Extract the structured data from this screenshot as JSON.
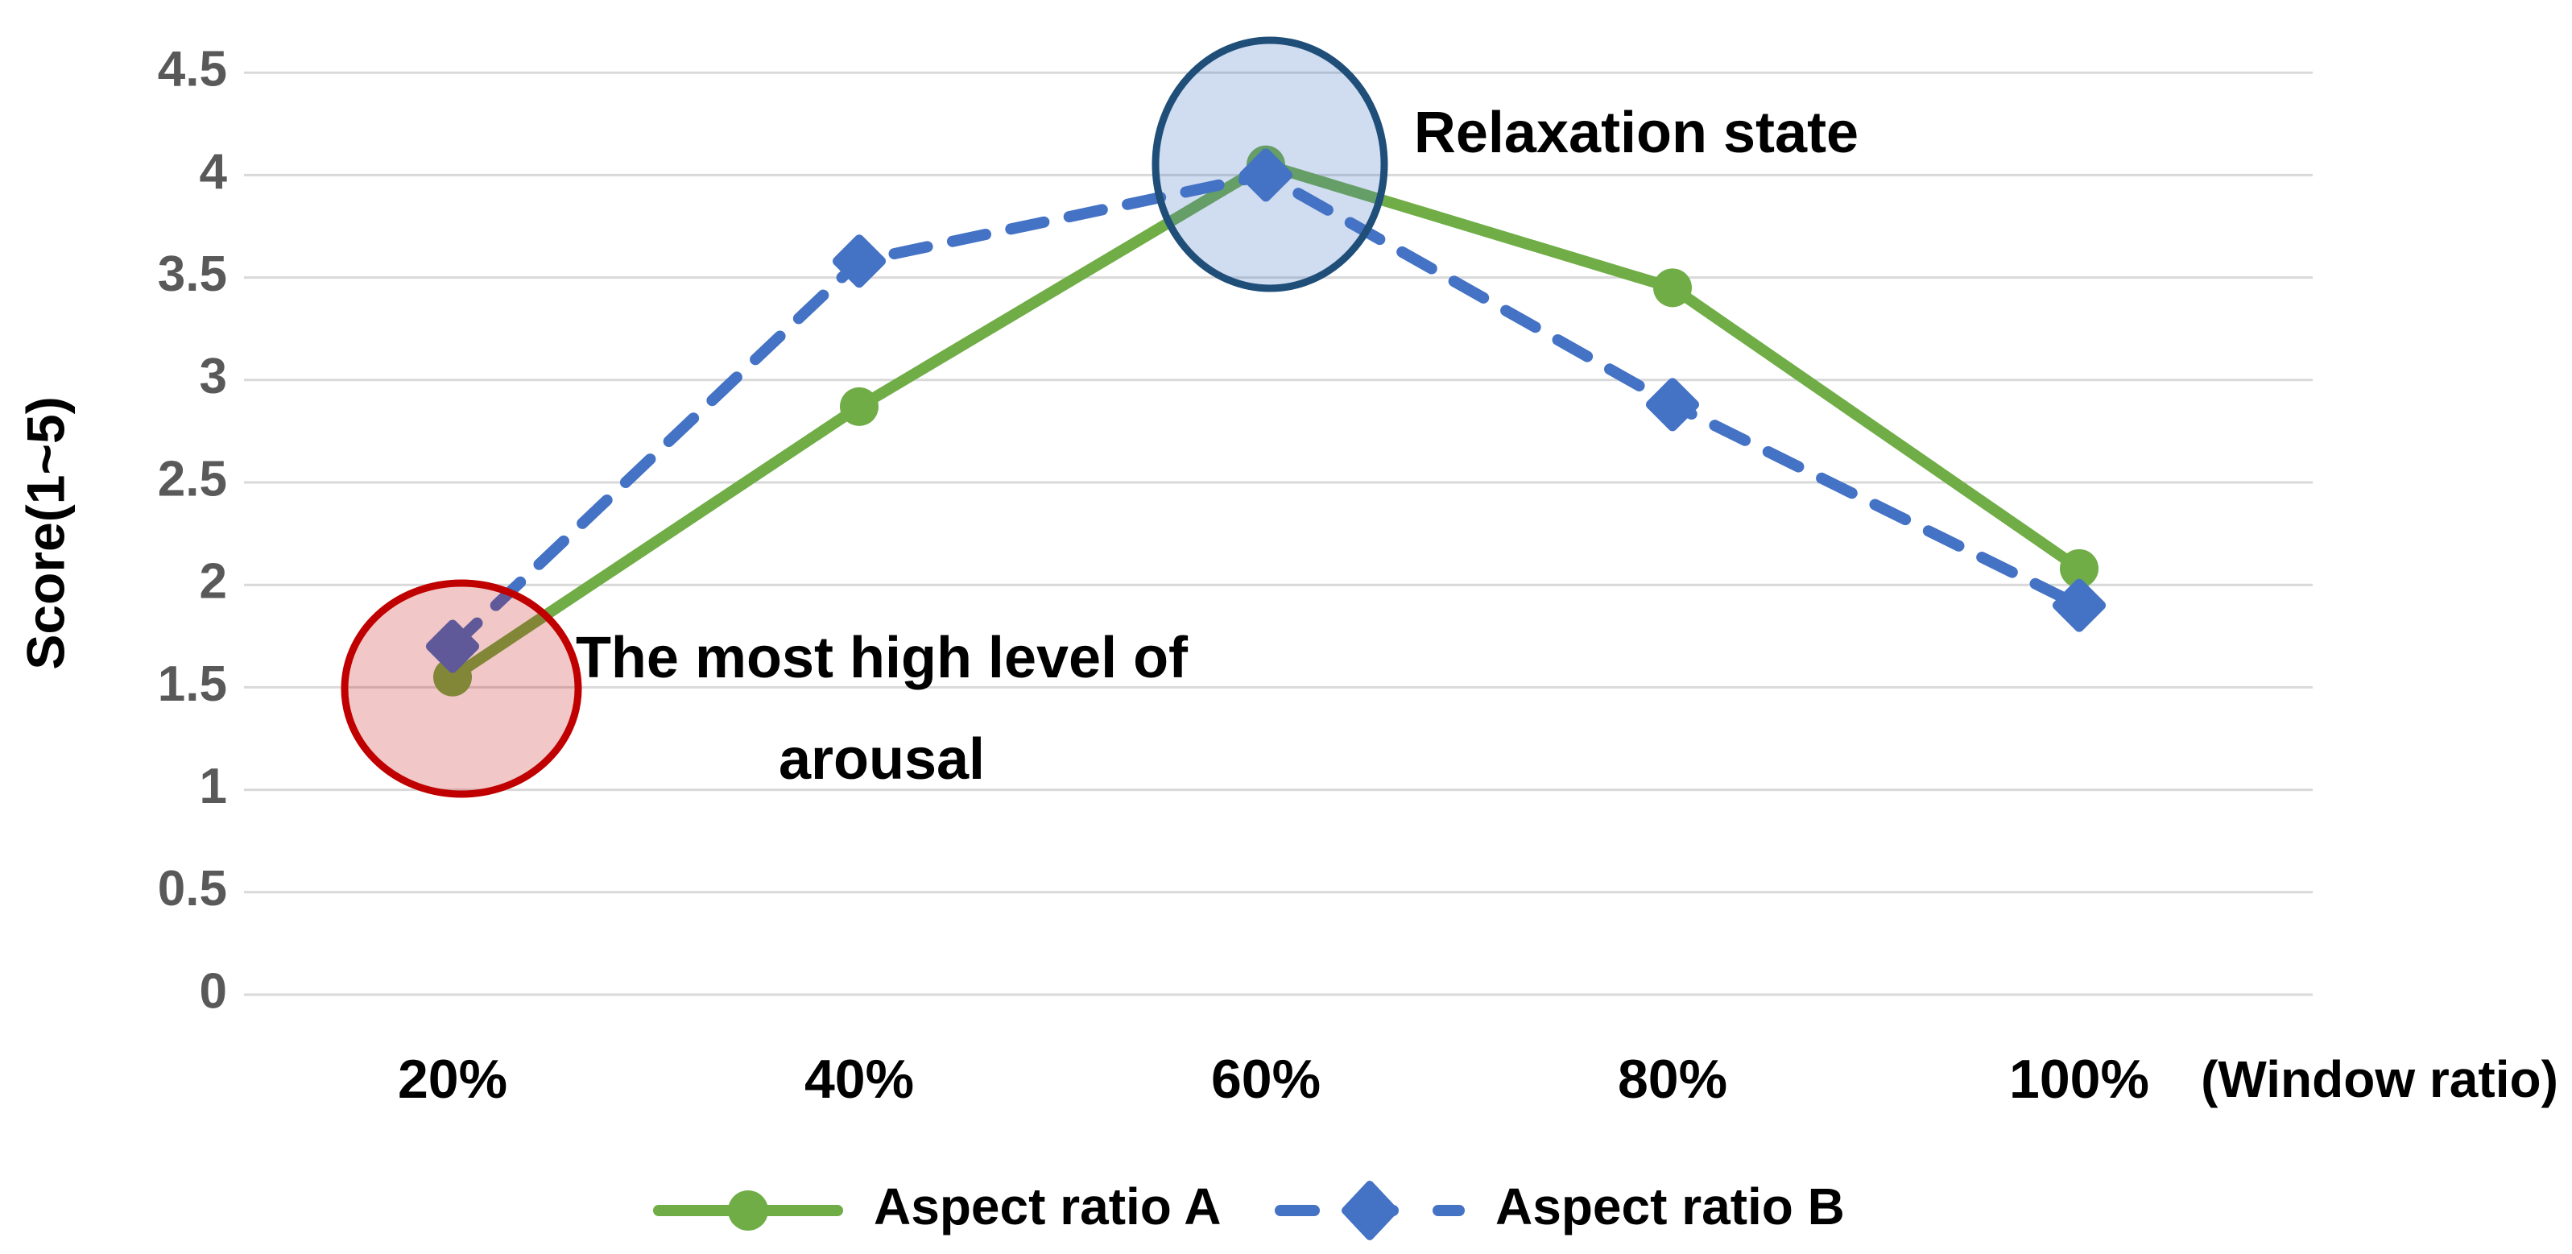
{
  "chart_data": {
    "type": "line",
    "title": "",
    "categories": [
      "20%",
      "40%",
      "60%",
      "80%",
      "100%"
    ],
    "x_axis_suffix": "(Window ratio)",
    "ylabel": "Score(1~5)",
    "ylim": [
      0,
      4.5
    ],
    "ytick_step": 0.5,
    "yticks": [
      "0",
      "0.5",
      "1",
      "1.5",
      "2",
      "2.5",
      "3",
      "3.5",
      "4",
      "4.5"
    ],
    "grid": "horizontal",
    "legend_position": "bottom",
    "series": [
      {
        "name": "Aspect ratio A",
        "values": [
          1.55,
          2.87,
          4.05,
          3.45,
          2.08
        ],
        "color": "#70AD47",
        "line_style": "solid",
        "marker": "circle"
      },
      {
        "name": "Aspect ratio B",
        "values": [
          1.7,
          3.58,
          4.0,
          2.88,
          1.9
        ],
        "color": "#4472C4",
        "line_style": "dashed",
        "marker": "diamond"
      }
    ],
    "annotations": [
      {
        "id": "relaxation",
        "lines": [
          "Relaxation state"
        ],
        "highlight_at": "60%",
        "highlight_value": 4.0,
        "circle_stroke": "#1F4E79",
        "circle_fill": "rgba(68,114,196,0.25)"
      },
      {
        "id": "arousal",
        "lines": [
          "The most high level of",
          "arousal"
        ],
        "highlight_at": "20%",
        "highlight_value": 1.5,
        "circle_stroke": "#C00000",
        "circle_fill": "rgba(192,0,0,0.22)"
      }
    ],
    "colors": {
      "grid": "#D9D9D9",
      "tick_label": "#595959",
      "axis_text": "#000000",
      "series_a": "#70AD47",
      "series_b": "#4472C4",
      "relaxation_circle": "#1F4E79",
      "arousal_circle": "#C00000"
    }
  }
}
